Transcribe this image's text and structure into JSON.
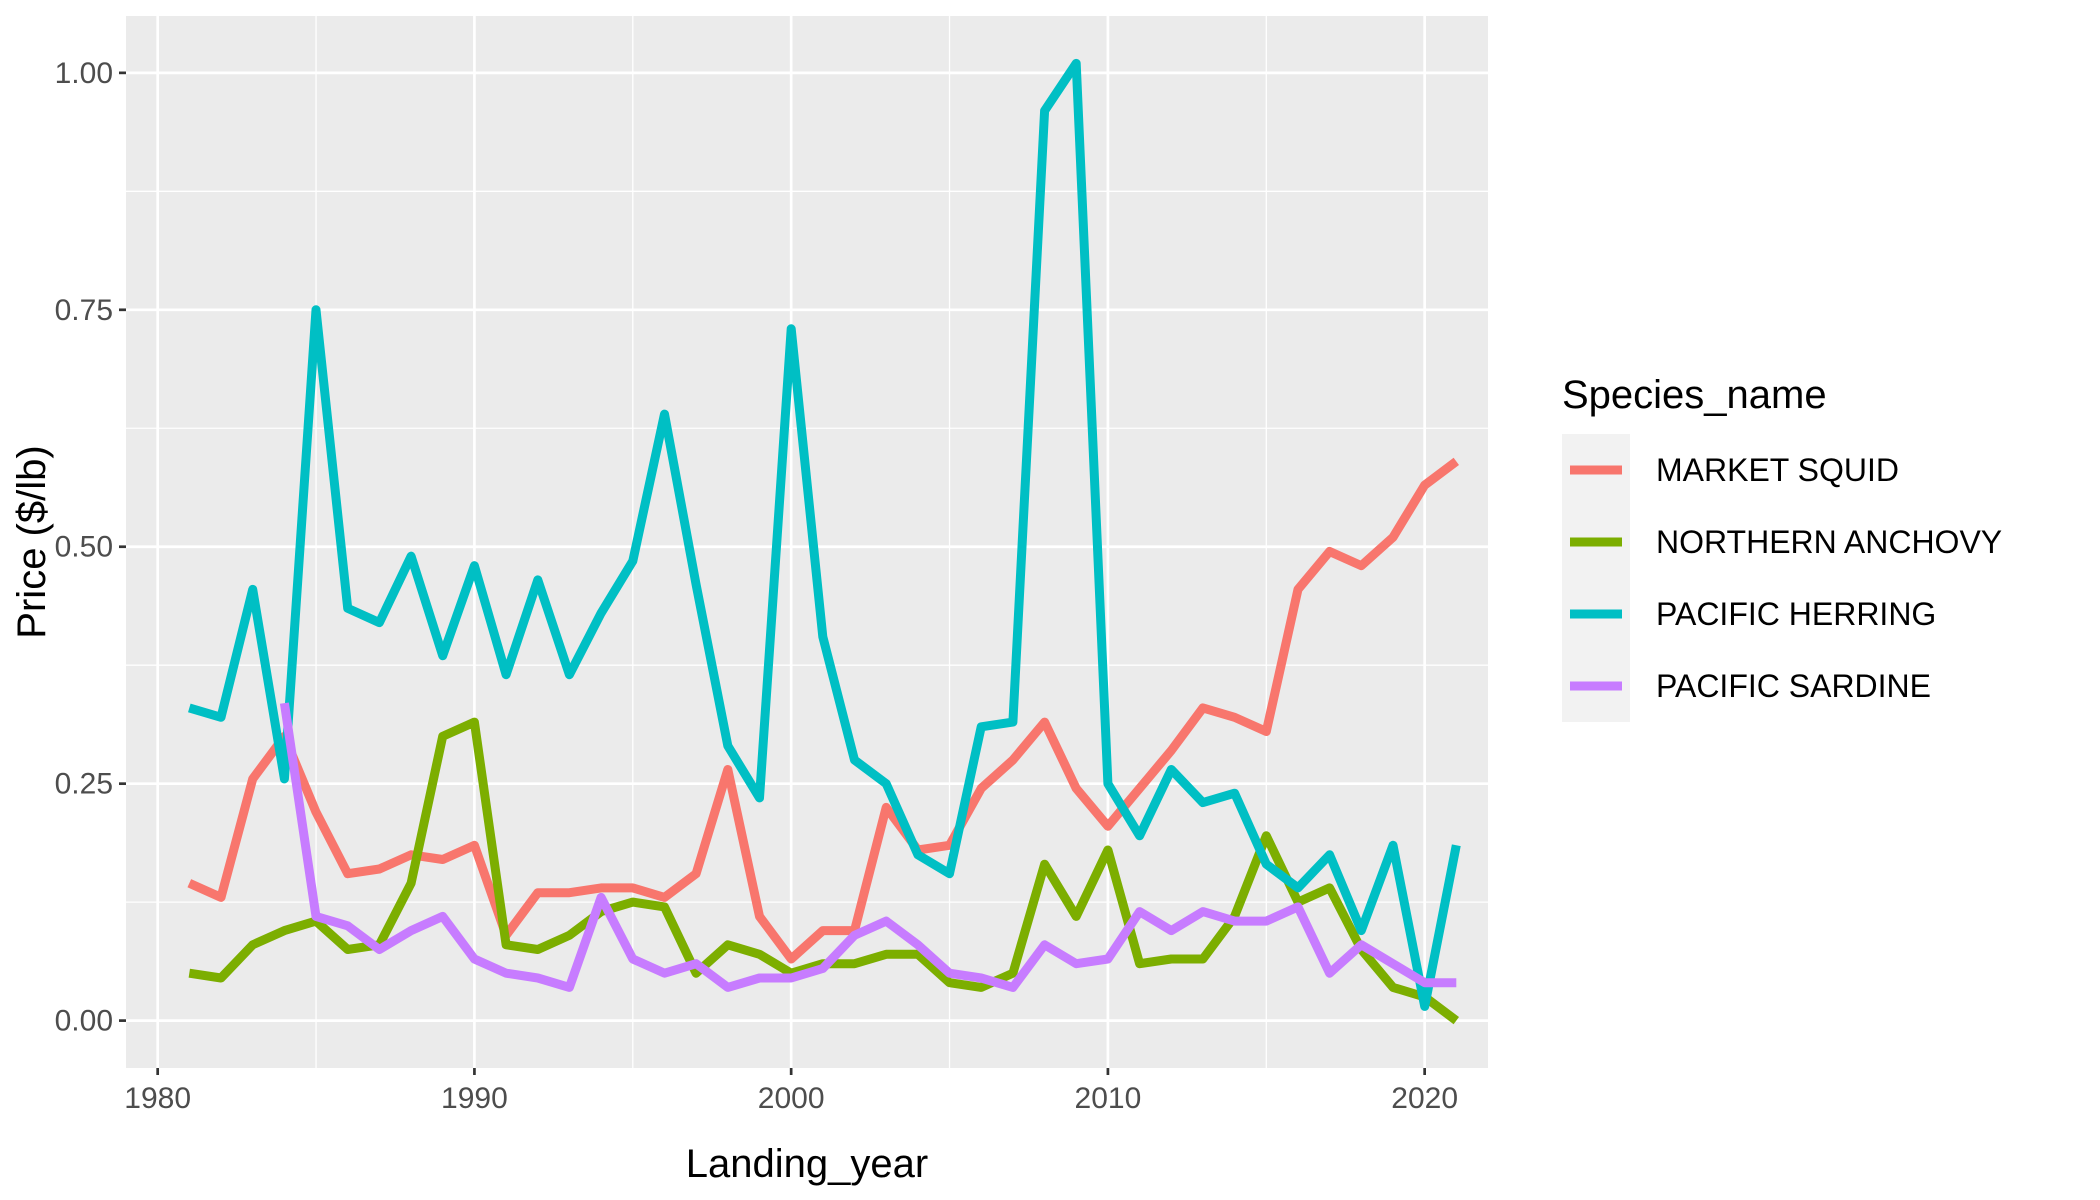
{
  "chart_data": {
    "type": "line",
    "title": "",
    "xlabel": "Landing_year",
    "ylabel": "Price ($/lb)",
    "xlim": [
      1979.0,
      2022.0
    ],
    "ylim": [
      -0.05,
      1.06
    ],
    "x_ticks": [
      1980,
      1990,
      2000,
      2010,
      2020
    ],
    "x_tick_labels": [
      "1980",
      "1990",
      "2000",
      "2010",
      "2020"
    ],
    "y_ticks": [
      0.0,
      0.25,
      0.5,
      0.75,
      1.0
    ],
    "y_tick_labels": [
      "0.00",
      "0.25",
      "0.50",
      "0.75",
      "1.00"
    ],
    "grid": true,
    "legend": {
      "title": "Species_name",
      "position": "right"
    },
    "x": [
      1981,
      1982,
      1983,
      1984,
      1985,
      1986,
      1987,
      1988,
      1989,
      1990,
      1991,
      1992,
      1993,
      1994,
      1995,
      1996,
      1997,
      1998,
      1999,
      2000,
      2001,
      2002,
      2003,
      2004,
      2005,
      2006,
      2007,
      2008,
      2009,
      2010,
      2011,
      2012,
      2013,
      2014,
      2015,
      2016,
      2017,
      2018,
      2019,
      2020,
      2021
    ],
    "series": [
      {
        "name": "MARKET SQUID",
        "color": "#F8766D",
        "values": [
          0.145,
          0.13,
          0.255,
          0.3,
          0.22,
          0.155,
          0.16,
          0.175,
          0.17,
          0.185,
          0.09,
          0.135,
          0.135,
          0.14,
          0.14,
          0.13,
          0.155,
          0.265,
          0.11,
          0.065,
          0.095,
          0.095,
          0.225,
          0.18,
          0.185,
          0.245,
          0.275,
          0.315,
          0.245,
          0.205,
          0.245,
          0.285,
          0.33,
          0.32,
          0.305,
          0.455,
          0.495,
          0.48,
          0.51,
          0.565,
          0.59
        ]
      },
      {
        "name": "NORTHERN ANCHOVY",
        "color": "#7CAE00",
        "values": [
          0.05,
          0.045,
          0.08,
          0.095,
          0.105,
          0.075,
          0.08,
          0.145,
          0.3,
          0.315,
          0.08,
          0.075,
          0.09,
          0.115,
          0.125,
          0.12,
          0.05,
          0.08,
          0.07,
          0.05,
          0.06,
          0.06,
          0.07,
          0.07,
          0.04,
          0.035,
          0.05,
          0.165,
          0.11,
          0.18,
          0.06,
          0.065,
          0.065,
          0.11,
          0.195,
          0.125,
          0.14,
          0.075,
          0.035,
          0.025,
          0.0
        ]
      },
      {
        "name": "PACIFIC HERRING",
        "color": "#00BFC4",
        "values": [
          0.33,
          0.32,
          0.455,
          0.255,
          0.75,
          0.435,
          0.42,
          0.49,
          0.385,
          0.48,
          0.365,
          0.465,
          0.365,
          0.43,
          0.485,
          0.64,
          0.46,
          0.29,
          0.235,
          0.73,
          0.405,
          0.275,
          0.25,
          0.175,
          0.155,
          0.31,
          0.315,
          0.96,
          1.01,
          0.25,
          0.195,
          0.265,
          0.23,
          0.24,
          0.165,
          0.14,
          0.175,
          0.095,
          0.185,
          0.015,
          0.185
        ]
      },
      {
        "name": "PACIFIC SARDINE",
        "color": "#C77CFF",
        "values": [
          null,
          null,
          null,
          0.335,
          0.11,
          0.1,
          0.075,
          0.095,
          0.11,
          0.065,
          0.05,
          0.045,
          0.035,
          0.13,
          0.065,
          0.05,
          0.06,
          0.035,
          0.045,
          0.045,
          0.055,
          0.09,
          0.105,
          0.08,
          0.05,
          0.045,
          0.035,
          0.08,
          0.06,
          0.065,
          0.115,
          0.095,
          0.115,
          0.105,
          0.105,
          0.12,
          0.05,
          0.08,
          0.06,
          0.04,
          0.04
        ]
      }
    ]
  }
}
